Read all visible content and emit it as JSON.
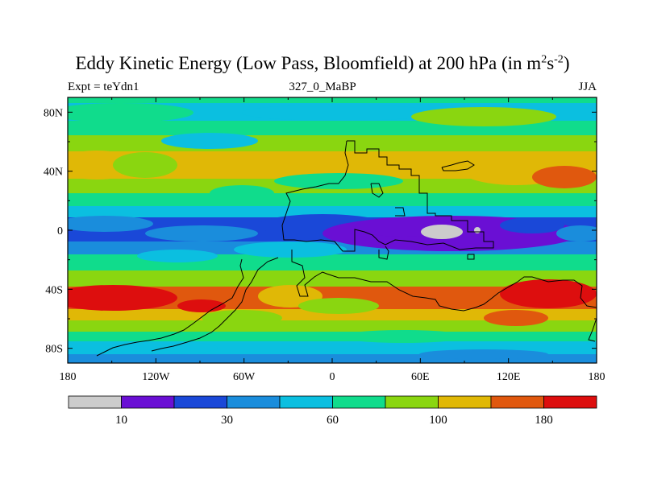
{
  "title": {
    "main": "Eddy Kinetic Energy (Low Pass, Bloomfield) at 200 hPa (in m",
    "sup1": "2",
    "mid": "s",
    "sup2": "-2",
    "end": ")"
  },
  "subtitle_left": "Expt = teYdn1",
  "subtitle_center": "327_0_MaBP",
  "subtitle_right": "JJA",
  "chart_data": {
    "type": "heatmap",
    "title": "Eddy Kinetic Energy (Low Pass, Bloomfield) at 200 hPa (in m2s-2)",
    "x_ticks": [
      "180",
      "120W",
      "60W",
      "0",
      "60E",
      "120E",
      "180"
    ],
    "x_tick_values": [
      -180,
      -120,
      -60,
      0,
      60,
      120,
      180
    ],
    "y_ticks": [
      "80N",
      "40N",
      "0",
      "40S",
      "80S"
    ],
    "y_tick_values": [
      80,
      40,
      0,
      -40,
      -80
    ],
    "xlim": [
      -180,
      180
    ],
    "ylim": [
      -90,
      90
    ],
    "colorbar": {
      "colors": [
        "#cccccc",
        "#6a0fd4",
        "#1a48d8",
        "#1a8ddc",
        "#0bbfe0",
        "#10dc8c",
        "#8ad610",
        "#e0b806",
        "#e0580e",
        "#dd0e0e"
      ],
      "labels": [
        {
          "text": "10",
          "after_bin": 1
        },
        {
          "text": "30",
          "after_bin": 3
        },
        {
          "text": "60",
          "after_bin": 5
        },
        {
          "text": "100",
          "after_bin": 7
        },
        {
          "text": "180",
          "after_bin": 9
        }
      ]
    }
  }
}
